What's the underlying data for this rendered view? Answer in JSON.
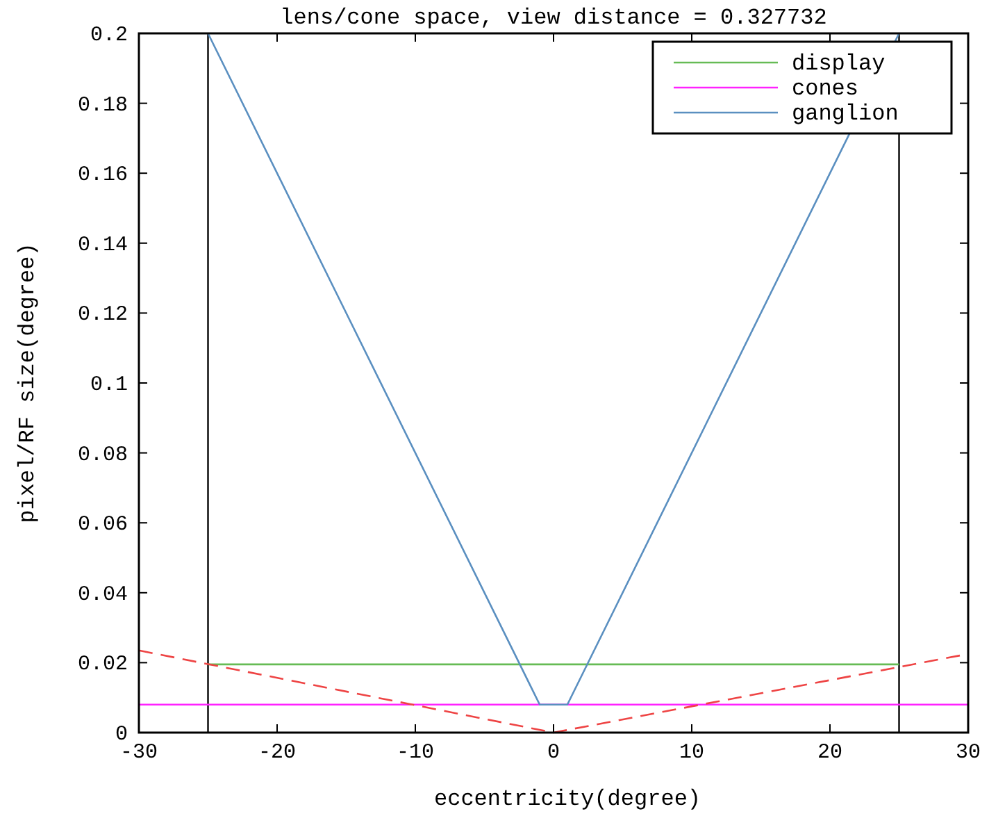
{
  "chart_data": {
    "type": "line",
    "title": "lens/cone space, view distance = 0.327732",
    "xlabel": "eccentricity(degree)",
    "ylabel": "pixel/RF size(degree)",
    "xlim": [
      -30,
      30
    ],
    "xticks": [
      -30,
      -20,
      -10,
      0,
      10,
      20,
      30
    ],
    "ylim": [
      0,
      0.2
    ],
    "yticks": [
      0,
      0.02,
      0.04,
      0.06,
      0.08,
      0.1,
      0.12,
      0.14,
      0.16,
      0.18,
      0.2
    ],
    "series": [
      {
        "name": "display",
        "color": "#66bb55",
        "x": [
          -25,
          25
        ],
        "values": [
          0.0195,
          0.0195
        ]
      },
      {
        "name": "cones",
        "color": "#ff22ff",
        "x": [
          -30,
          30
        ],
        "values": [
          0.008,
          0.008
        ]
      },
      {
        "name": "ganglion",
        "color": "#5a8fc0",
        "x": [
          -25,
          -1,
          1,
          25
        ],
        "values": [
          0.2,
          0.008,
          0.008,
          0.2
        ]
      },
      {
        "color": "#ee4444",
        "line_style": "dashed",
        "x": [
          -30,
          0,
          30
        ],
        "values": [
          0.0235,
          0,
          0.0225
        ]
      }
    ],
    "ref_lines": [
      {
        "axis": "x",
        "value": -25,
        "color": "#000000"
      },
      {
        "axis": "x",
        "value": 25,
        "color": "#000000"
      }
    ],
    "legend": "top right",
    "grid": false
  }
}
